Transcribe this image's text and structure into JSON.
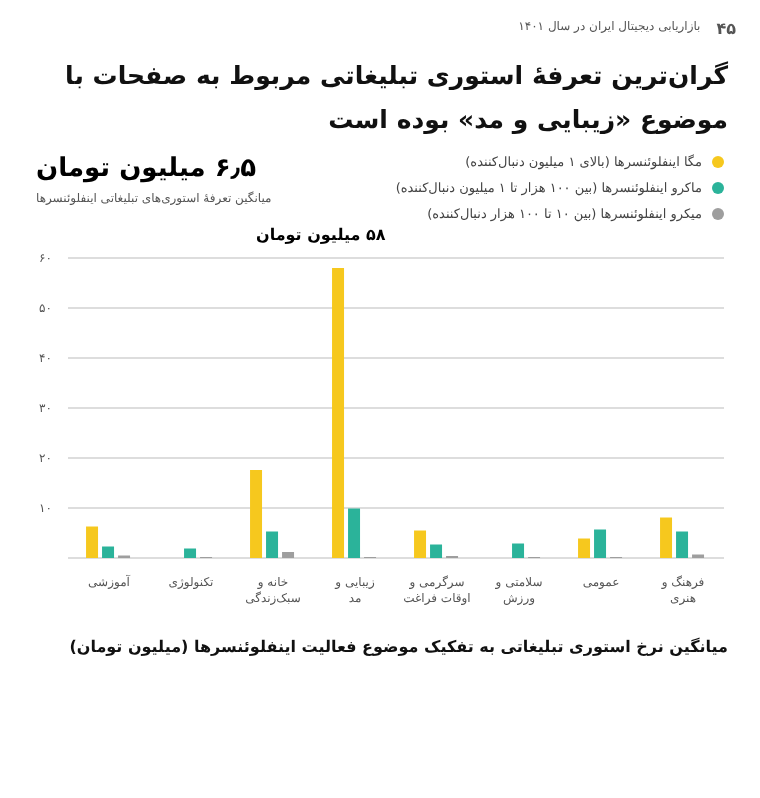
{
  "chart_data": {
    "type": "bar",
    "title": "گران‌ترین تعرفهٔ استوری تبلیغاتی مربوط به صفحات با موضوع «زیبایی و مد» بوده است",
    "categories": [
      "آموزشی",
      "تکنولوژی",
      "خانه و سبک‌زندگی",
      "زیبایی و مد",
      "سرگرمی و اوقات فراغت",
      "سلامتی و ورزش",
      "عمومی",
      "فرهنگ و هنری"
    ],
    "series": [
      {
        "name": "مگا اینفلوئنسرها (بالای ۱ میلیون دنبال‌کننده)",
        "color": "#f6c81e",
        "values": [
          6.3,
          null,
          17.6,
          58,
          5.5,
          null,
          3.9,
          8.1
        ]
      },
      {
        "name": "ماکرو اینفلوئنسرها (بین ۱۰۰ هزار تا ۱ میلیون دنبال‌کننده)",
        "color": "#2bb39a",
        "values": [
          2.3,
          1.9,
          5.3,
          9.9,
          2.7,
          2.9,
          5.7,
          5.3
        ]
      },
      {
        "name": "میکرو اینفلوئنسرها (بین ۱۰ تا ۱۰۰ هزار دنبال‌کننده)",
        "color": "#9e9e9e",
        "values": [
          0.5,
          0.2,
          1.2,
          0.2,
          0.4,
          0.2,
          0.2,
          0.7
        ]
      }
    ],
    "ylim": [
      0,
      60
    ],
    "yticks": [
      {
        "value": 0,
        "label": null
      },
      {
        "value": 10,
        "label": "۱۰"
      },
      {
        "value": 20,
        "label": "۲۰"
      },
      {
        "value": 30,
        "label": "۳۰"
      },
      {
        "value": 40,
        "label": "۴۰"
      },
      {
        "value": 50,
        "label": "۵۰"
      },
      {
        "value": 60,
        "label": "۶۰"
      }
    ],
    "grid": "y",
    "legend": "top right",
    "annotations": [
      "۴۵",
      "بازاریابی دیجیتال ایران در سال ۱۴۰۱",
      "۶٫۵ میلیون تومان",
      "میانگین تعرفهٔ استوری‌های تبلیغاتی اینفلوئنسرها",
      "۵۸ میلیون تومان",
      "میانگین نرخ استوری تبلیغاتی به تفکیک موضوع فعالیت اینفلوئنسرها (میلیون تومان)"
    ]
  }
}
